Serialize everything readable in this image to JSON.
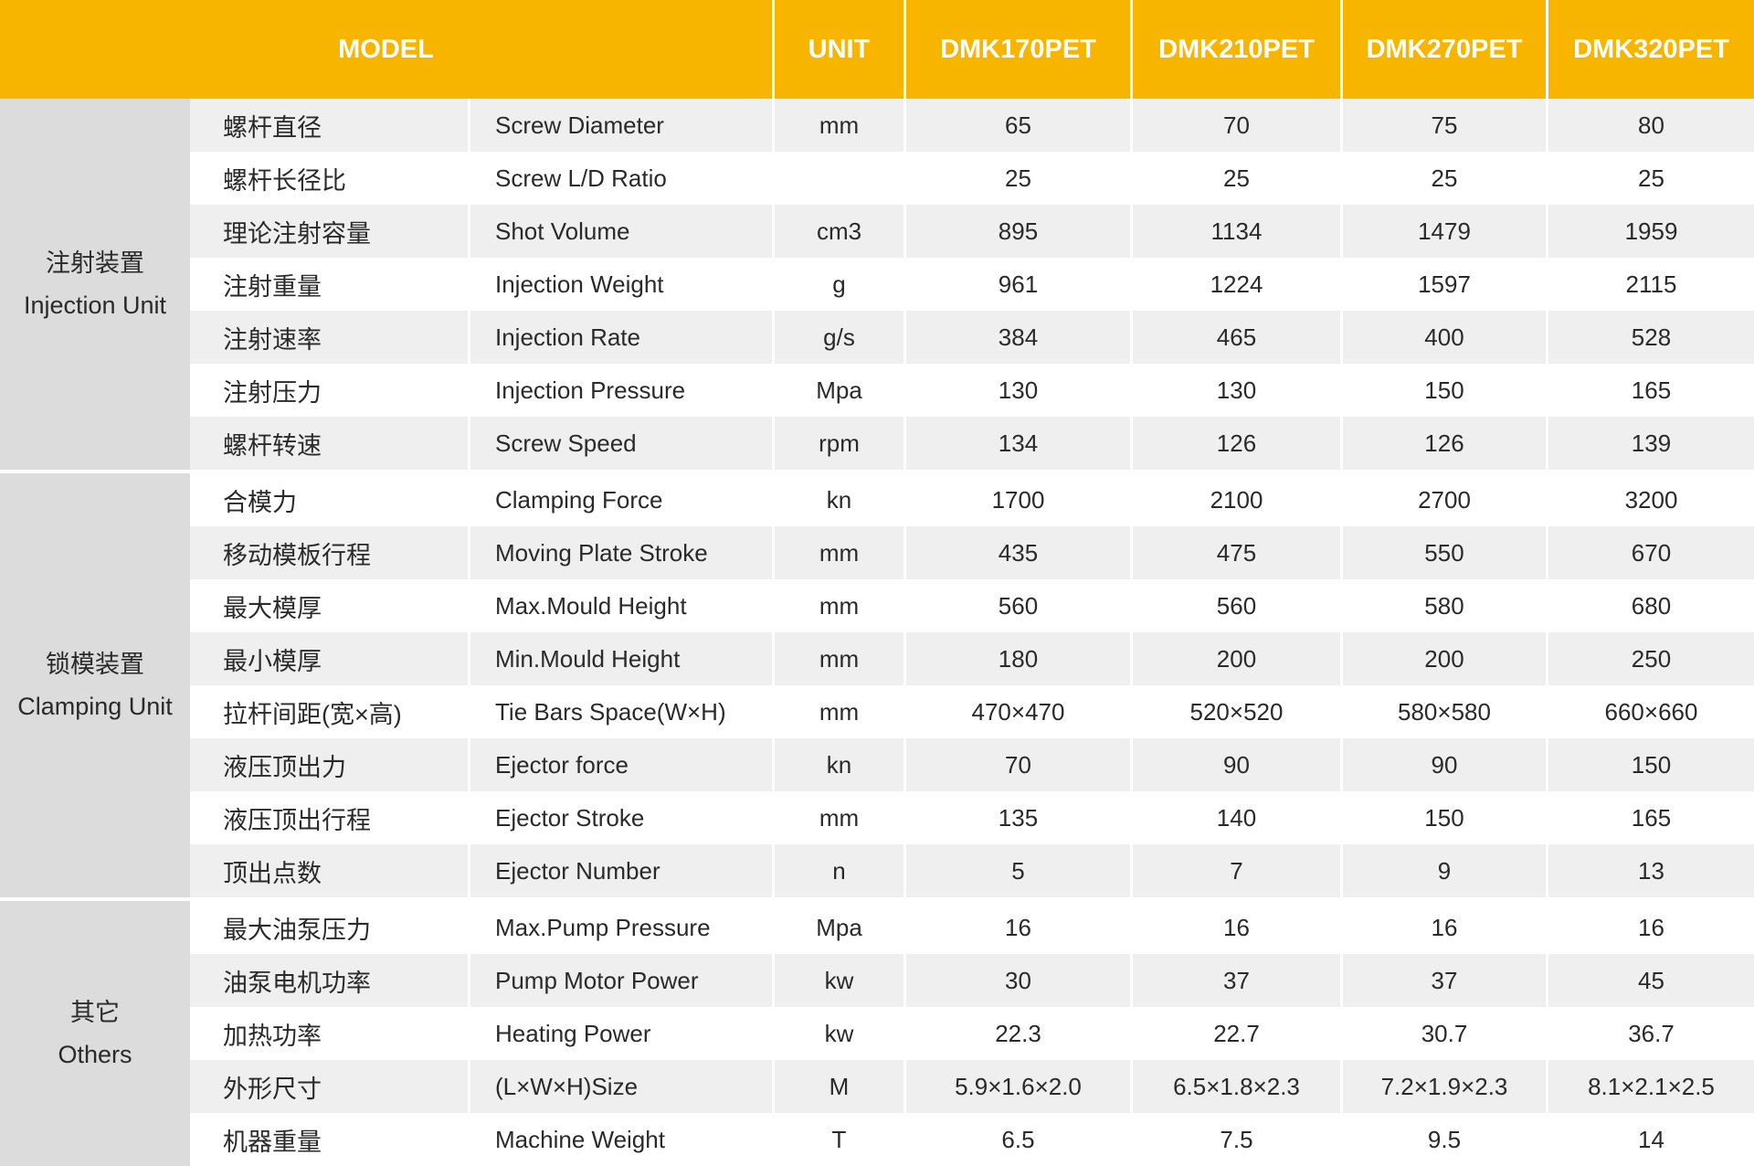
{
  "header": {
    "model": "MODEL",
    "unit": "UNIT",
    "models": [
      "DMK170PET",
      "DMK210PET",
      "DMK270PET",
      "DMK320PET"
    ]
  },
  "colors": {
    "header_bg": "#f7b500",
    "group_bg": "#dcdcdc",
    "stripe": "#efefef"
  },
  "groups": [
    {
      "cn": "注射装置",
      "en": "Injection Unit",
      "rows": [
        {
          "cn": "螺杆直径",
          "en": "Screw Diameter",
          "unit": "mm",
          "values": [
            "65",
            "70",
            "75",
            "80"
          ]
        },
        {
          "cn": "螺杆长径比",
          "en": "Screw L/D Ratio",
          "unit": "",
          "values": [
            "25",
            "25",
            "25",
            "25"
          ]
        },
        {
          "cn": "理论注射容量",
          "en": "Shot Volume",
          "unit": "cm3",
          "values": [
            "895",
            "1134",
            "1479",
            "1959"
          ]
        },
        {
          "cn": "注射重量",
          "en": "Injection Weight",
          "unit": "g",
          "values": [
            "961",
            "1224",
            "1597",
            "2115"
          ]
        },
        {
          "cn": "注射速率",
          "en": "Injection Rate",
          "unit": "g/s",
          "values": [
            "384",
            "465",
            "400",
            "528"
          ]
        },
        {
          "cn": "注射压力",
          "en": "Injection Pressure",
          "unit": "Mpa",
          "values": [
            "130",
            "130",
            "150",
            "165"
          ]
        },
        {
          "cn": "螺杆转速",
          "en": "Screw Speed",
          "unit": "rpm",
          "values": [
            "134",
            "126",
            "126",
            "139"
          ]
        }
      ]
    },
    {
      "cn": "锁模装置",
      "en": "Clamping Unit",
      "rows": [
        {
          "cn": "合模力",
          "en": "Clamping Force",
          "unit": "kn",
          "values": [
            "1700",
            "2100",
            "2700",
            "3200"
          ]
        },
        {
          "cn": "移动模板行程",
          "en": "Moving Plate Stroke",
          "unit": "mm",
          "values": [
            "435",
            "475",
            "550",
            "670"
          ]
        },
        {
          "cn": "最大模厚",
          "en": "Max.Mould Height",
          "unit": "mm",
          "values": [
            "560",
            "560",
            "580",
            "680"
          ]
        },
        {
          "cn": "最小模厚",
          "en": "Min.Mould Height",
          "unit": "mm",
          "values": [
            "180",
            "200",
            "200",
            "250"
          ]
        },
        {
          "cn": "拉杆间距(宽×高)",
          "en": "Tie Bars Space(W×H)",
          "unit": "mm",
          "values": [
            "470×470",
            "520×520",
            "580×580",
            "660×660"
          ]
        },
        {
          "cn": "液压顶出力",
          "en": "Ejector force",
          "unit": "kn",
          "values": [
            "70",
            "90",
            "90",
            "150"
          ]
        },
        {
          "cn": "液压顶出行程",
          "en": "Ejector Stroke",
          "unit": "mm",
          "values": [
            "135",
            "140",
            "150",
            "165"
          ]
        },
        {
          "cn": "顶出点数",
          "en": "Ejector Number",
          "unit": "n",
          "values": [
            "5",
            "7",
            "9",
            "13"
          ]
        }
      ]
    },
    {
      "cn": "其它",
      "en": "Others",
      "rows": [
        {
          "cn": "最大油泵压力",
          "en": "Max.Pump Pressure",
          "unit": "Mpa",
          "values": [
            "16",
            "16",
            "16",
            "16"
          ]
        },
        {
          "cn": "油泵电机功率",
          "en": "Pump Motor Power",
          "unit": "kw",
          "values": [
            "30",
            "37",
            "37",
            "45"
          ]
        },
        {
          "cn": "加热功率",
          "en": "Heating Power",
          "unit": "kw",
          "values": [
            "22.3",
            "22.7",
            "30.7",
            "36.7"
          ]
        },
        {
          "cn": "外形尺寸",
          "en": "(L×W×H)Size",
          "unit": "M",
          "values": [
            "5.9×1.6×2.0",
            "6.5×1.8×2.3",
            "7.2×1.9×2.3",
            "8.1×2.1×2.5"
          ]
        },
        {
          "cn": "机器重量",
          "en": "Machine Weight",
          "unit": "T",
          "values": [
            "6.5",
            "7.5",
            "9.5",
            "14"
          ]
        }
      ]
    }
  ]
}
